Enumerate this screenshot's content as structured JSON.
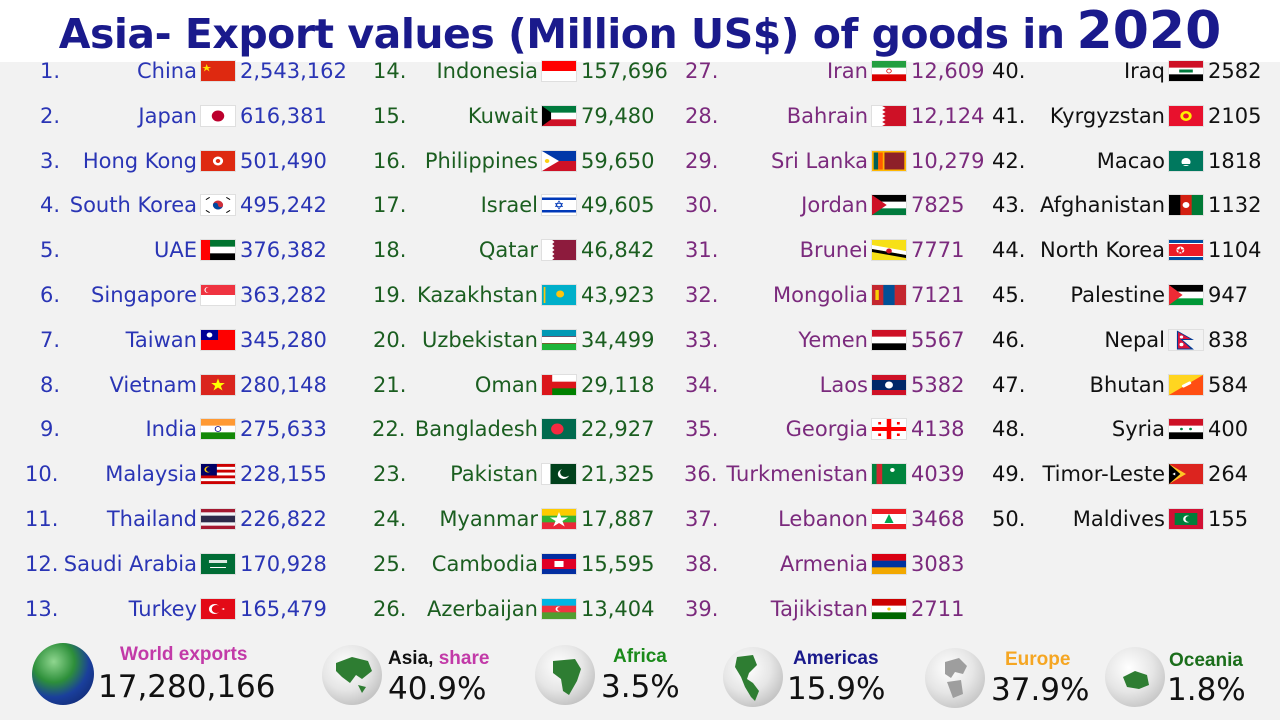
{
  "title": {
    "main": "Asia- Export values (Million US$) of goods in",
    "year": "2020"
  },
  "columns": [
    [
      {
        "rank": "1.",
        "name": "China",
        "value": "2,543,162",
        "flag": "cn"
      },
      {
        "rank": "2.",
        "name": "Japan",
        "value": "616,381",
        "flag": "jp"
      },
      {
        "rank": "3.",
        "name": "Hong Kong",
        "value": "501,490",
        "flag": "hk"
      },
      {
        "rank": "4.",
        "name": "South Korea",
        "value": "495,242",
        "flag": "kr"
      },
      {
        "rank": "5.",
        "name": "UAE",
        "value": "376,382",
        "flag": "ae"
      },
      {
        "rank": "6.",
        "name": "Singapore",
        "value": "363,282",
        "flag": "sg"
      },
      {
        "rank": "7.",
        "name": "Taiwan",
        "value": "345,280",
        "flag": "tw"
      },
      {
        "rank": "8.",
        "name": "Vietnam",
        "value": "280,148",
        "flag": "vn"
      },
      {
        "rank": "9.",
        "name": "India",
        "value": "275,633",
        "flag": "in"
      },
      {
        "rank": "10.",
        "name": "Malaysia",
        "value": "228,155",
        "flag": "my"
      },
      {
        "rank": "11.",
        "name": "Thailand",
        "value": "226,822",
        "flag": "th"
      },
      {
        "rank": "12.",
        "name": "Saudi Arabia",
        "value": "170,928",
        "flag": "sa"
      },
      {
        "rank": "13.",
        "name": "Turkey",
        "value": "165,479",
        "flag": "tr"
      }
    ],
    [
      {
        "rank": "14.",
        "name": "Indonesia",
        "value": "157,696",
        "flag": "id"
      },
      {
        "rank": "15.",
        "name": "Kuwait",
        "value": "79,480",
        "flag": "kw"
      },
      {
        "rank": "16.",
        "name": "Philippines",
        "value": "59,650",
        "flag": "ph"
      },
      {
        "rank": "17.",
        "name": "Israel",
        "value": "49,605",
        "flag": "il"
      },
      {
        "rank": "18.",
        "name": "Qatar",
        "value": "46,842",
        "flag": "qa"
      },
      {
        "rank": "19.",
        "name": "Kazakhstan",
        "value": "43,923",
        "flag": "kz"
      },
      {
        "rank": "20.",
        "name": "Uzbekistan",
        "value": "34,499",
        "flag": "uz"
      },
      {
        "rank": "21.",
        "name": "Oman",
        "value": "29,118",
        "flag": "om"
      },
      {
        "rank": "22.",
        "name": "Bangladesh",
        "value": "22,927",
        "flag": "bd"
      },
      {
        "rank": "23.",
        "name": "Pakistan",
        "value": "21,325",
        "flag": "pk"
      },
      {
        "rank": "24.",
        "name": "Myanmar",
        "value": "17,887",
        "flag": "mm"
      },
      {
        "rank": "25.",
        "name": "Cambodia",
        "value": "15,595",
        "flag": "kh"
      },
      {
        "rank": "26.",
        "name": "Azerbaijan",
        "value": "13,404",
        "flag": "az"
      }
    ],
    [
      {
        "rank": "27.",
        "name": "Iran",
        "value": "12,609",
        "flag": "ir"
      },
      {
        "rank": "28.",
        "name": "Bahrain",
        "value": "12,124",
        "flag": "bh"
      },
      {
        "rank": "29.",
        "name": "Sri Lanka",
        "value": "10,279",
        "flag": "lk"
      },
      {
        "rank": "30.",
        "name": "Jordan",
        "value": "7825",
        "flag": "jo"
      },
      {
        "rank": "31.",
        "name": "Brunei",
        "value": "7771",
        "flag": "bn"
      },
      {
        "rank": "32.",
        "name": "Mongolia",
        "value": "7121",
        "flag": "mn"
      },
      {
        "rank": "33.",
        "name": "Yemen",
        "value": "5567",
        "flag": "ye"
      },
      {
        "rank": "34.",
        "name": "Laos",
        "value": "5382",
        "flag": "la"
      },
      {
        "rank": "35.",
        "name": "Georgia",
        "value": "4138",
        "flag": "ge"
      },
      {
        "rank": "36.",
        "name": "Turkmenistan",
        "value": "4039",
        "flag": "tm"
      },
      {
        "rank": "37.",
        "name": "Lebanon",
        "value": "3468",
        "flag": "lb"
      },
      {
        "rank": "38.",
        "name": "Armenia",
        "value": "3083",
        "flag": "am"
      },
      {
        "rank": "39.",
        "name": "Tajikistan",
        "value": "2711",
        "flag": "tj"
      }
    ],
    [
      {
        "rank": "40.",
        "name": "Iraq",
        "value": "2582",
        "flag": "iq"
      },
      {
        "rank": "41.",
        "name": "Kyrgyzstan",
        "value": "2105",
        "flag": "kg"
      },
      {
        "rank": "42.",
        "name": "Macao",
        "value": "1818",
        "flag": "mo"
      },
      {
        "rank": "43.",
        "name": "Afghanistan",
        "value": "1132",
        "flag": "af"
      },
      {
        "rank": "44.",
        "name": "North Korea",
        "value": "1104",
        "flag": "kp"
      },
      {
        "rank": "45.",
        "name": "Palestine",
        "value": "947",
        "flag": "ps"
      },
      {
        "rank": "46.",
        "name": "Nepal",
        "value": "838",
        "flag": "np"
      },
      {
        "rank": "47.",
        "name": "Bhutan",
        "value": "584",
        "flag": "bt"
      },
      {
        "rank": "48.",
        "name": "Syria",
        "value": "400",
        "flag": "sy"
      },
      {
        "rank": "49.",
        "name": "Timor-Leste",
        "value": "264",
        "flag": "tl"
      },
      {
        "rank": "50.",
        "name": "Maldives",
        "value": "155",
        "flag": "mv"
      }
    ]
  ],
  "footer": {
    "world": {
      "label": "World exports",
      "value": "17,280,166",
      "color": "#c23aa8"
    },
    "asia": {
      "label": "Asia",
      "label_sep": ", ",
      "label_extra": "share",
      "value": "40.9%",
      "color": "#111111",
      "extra_color": "#c23aa8"
    },
    "africa": {
      "label": "Africa",
      "value": "3.5%",
      "color": "#1b8a1b"
    },
    "americas": {
      "label": "Americas",
      "value": "15.9%",
      "color": "#1a1a8c"
    },
    "europe": {
      "label": "Europe",
      "value": "37.9%",
      "color": "#f5a623"
    },
    "oceania": {
      "label": "Oceania",
      "value": "1.8%",
      "color": "#1b6e1b"
    }
  },
  "colors": {
    "title": "#1a1a8c",
    "col1": "#2a35b5",
    "col2": "#1b5e20",
    "col3": "#7b2a7d",
    "col4": "#111111"
  }
}
